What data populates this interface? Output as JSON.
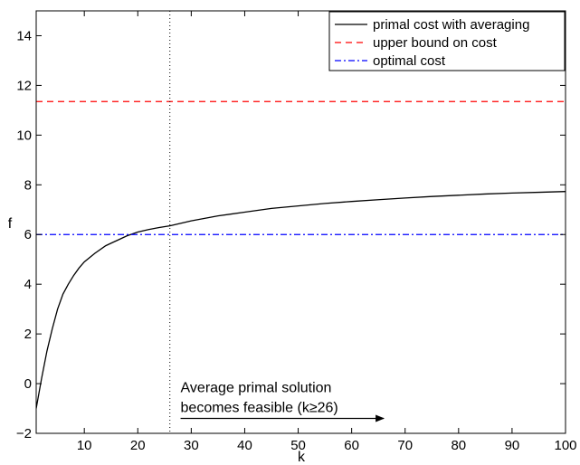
{
  "chart_data": {
    "type": "line",
    "xlabel": "k",
    "ylabel": "f",
    "xlim": [
      1,
      100
    ],
    "ylim": [
      -2,
      15
    ],
    "xticks": [
      10,
      20,
      30,
      40,
      50,
      60,
      70,
      80,
      90,
      100
    ],
    "yticks": [
      -2,
      0,
      2,
      4,
      6,
      8,
      10,
      12,
      14
    ],
    "grid": false,
    "legend_position": "top-right",
    "series": [
      {
        "name": "primal cost with averaging",
        "color": "#000000",
        "dash": "solid",
        "x": [
          1,
          2,
          3,
          4,
          5,
          6,
          7,
          8,
          9,
          10,
          12,
          14,
          16,
          18,
          20,
          22,
          24,
          26,
          28,
          30,
          35,
          40,
          45,
          50,
          55,
          60,
          65,
          70,
          75,
          80,
          85,
          90,
          95,
          100
        ],
        "y": [
          -1.0,
          0.2,
          1.3,
          2.2,
          3.0,
          3.6,
          4.0,
          4.35,
          4.65,
          4.9,
          5.25,
          5.55,
          5.75,
          5.95,
          6.1,
          6.2,
          6.28,
          6.35,
          6.45,
          6.55,
          6.75,
          6.9,
          7.05,
          7.15,
          7.25,
          7.33,
          7.4,
          7.47,
          7.53,
          7.58,
          7.63,
          7.67,
          7.7,
          7.73
        ]
      },
      {
        "name": "upper bound on cost",
        "color": "#ff0000",
        "dash": "dashed",
        "x": [
          1,
          100
        ],
        "y": [
          11.35,
          11.35
        ]
      },
      {
        "name": "optimal cost",
        "color": "#0000ff",
        "dash": "dashdot",
        "x": [
          1,
          100
        ],
        "y": [
          6.0,
          6.0
        ]
      }
    ],
    "vline": {
      "x": 26,
      "style": "dotted",
      "color": "#000000"
    },
    "annotation": {
      "lines": [
        "Average primal solution",
        "becomes feasible (k≥26)"
      ],
      "x": 28,
      "y": -0.35,
      "arrow_from_x": 28,
      "arrow_to_x": 66,
      "arrow_y": -1.4
    }
  }
}
